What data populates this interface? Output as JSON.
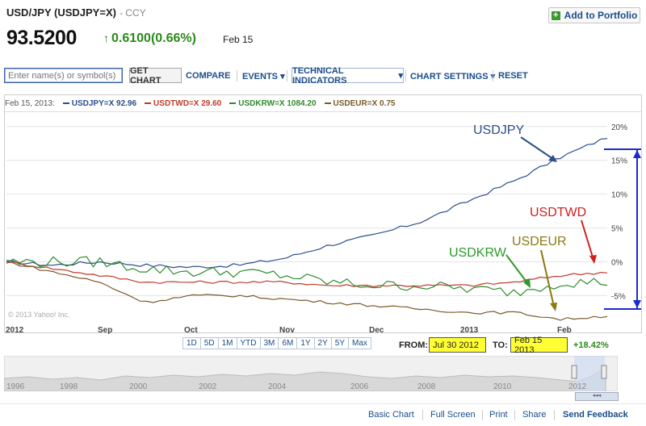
{
  "header": {
    "title": "USD/JPY (USDJPY=X)",
    "title_suffix": "- CCY",
    "price": "93.5200",
    "change": "0.6100(0.66%)",
    "date": "Feb 15",
    "add_to_portfolio": "Add to Portfolio",
    "change_color": "#2a8a1a"
  },
  "toolbar": {
    "search_placeholder": "Enter name(s) or symbol(s)",
    "get_chart": "GET CHART",
    "compare": "COMPARE",
    "events": "EVENTS",
    "technical_indicators": "TECHNICAL INDICATORS",
    "chart_settings": "CHART SETTINGS",
    "reset": "RESET"
  },
  "legend": {
    "date": "Feb 15, 2013:",
    "items": [
      {
        "label": "USDJPY=X 92.96",
        "color": "#2c4f8a"
      },
      {
        "label": "USDTWD=X 29.60",
        "color": "#c0392b"
      },
      {
        "label": "USDKRW=X 1084.20",
        "color": "#2e8b2e"
      },
      {
        "label": "USDEUR=X 0.75",
        "color": "#7a5a2a"
      }
    ]
  },
  "copyright": "© 2013 Yahoo! Inc.",
  "annotations": {
    "usdjpy": "USDJPY",
    "usdtwd": "USDTWD",
    "usdkrw": "USDKRW",
    "usdeur": "USDEUR"
  },
  "x_labels": [
    "2012",
    "Sep",
    "Oct",
    "Nov",
    "Dec",
    "2013",
    "Feb"
  ],
  "range_buttons": [
    "1D",
    "5D",
    "1M",
    "YTD",
    "3M",
    "6M",
    "1Y",
    "2Y",
    "5Y",
    "Max"
  ],
  "date_range": {
    "from_label": "FROM:",
    "from": "Jul 30 2012",
    "to_label": "TO:",
    "to": "Feb 15 2013",
    "change": "+18.42%"
  },
  "navigator_years": [
    "1996",
    "1998",
    "2000",
    "2002",
    "2004",
    "2006",
    "2008",
    "2010",
    "2012"
  ],
  "footer": {
    "links": [
      "Basic Chart",
      "Full Screen",
      "Print",
      "Share"
    ],
    "feedback": "Send Feedback"
  },
  "chart_data": {
    "type": "line",
    "x": [
      "Jul 30",
      "Aug 15",
      "Sep 1",
      "Sep 15",
      "Oct 1",
      "Oct 15",
      "Nov 1",
      "Nov 15",
      "Dec 1",
      "Dec 15",
      "Jan 1",
      "Jan 15",
      "Feb 1",
      "Feb 15"
    ],
    "ylim": [
      -9,
      22
    ],
    "y_ticks": [
      "20%",
      "15%",
      "10%",
      "5%",
      "0%",
      "-5%"
    ],
    "y_tick_values": [
      20,
      15,
      10,
      5,
      0,
      -5
    ],
    "series": [
      {
        "name": "USDJPY",
        "color": "#2c4f8a",
        "values": [
          0,
          -0.5,
          0,
          -0.5,
          -0.8,
          -0.5,
          0.5,
          2.5,
          4,
          6,
          9,
          12,
          15.5,
          18.42
        ]
      },
      {
        "name": "USDTWD",
        "color": "#c0392b",
        "values": [
          0,
          -1,
          -2,
          -3,
          -3,
          -3,
          -3,
          -3.5,
          -3.5,
          -3.5,
          -3.5,
          -3,
          -2,
          -1.5
        ]
      },
      {
        "name": "USDKRW",
        "color": "#2e8b2e",
        "values": [
          0,
          0,
          0,
          -1,
          -1.5,
          -1.5,
          -2,
          -3,
          -3.5,
          -3.5,
          -4,
          -4.5,
          -3,
          -3
        ]
      },
      {
        "name": "USDEUR",
        "color": "#7a5a2a",
        "values": [
          0,
          -1.5,
          -3,
          -6,
          -5,
          -5,
          -5.5,
          -6,
          -6.5,
          -7,
          -7.5,
          -7.5,
          -8.5,
          -8
        ]
      }
    ]
  }
}
